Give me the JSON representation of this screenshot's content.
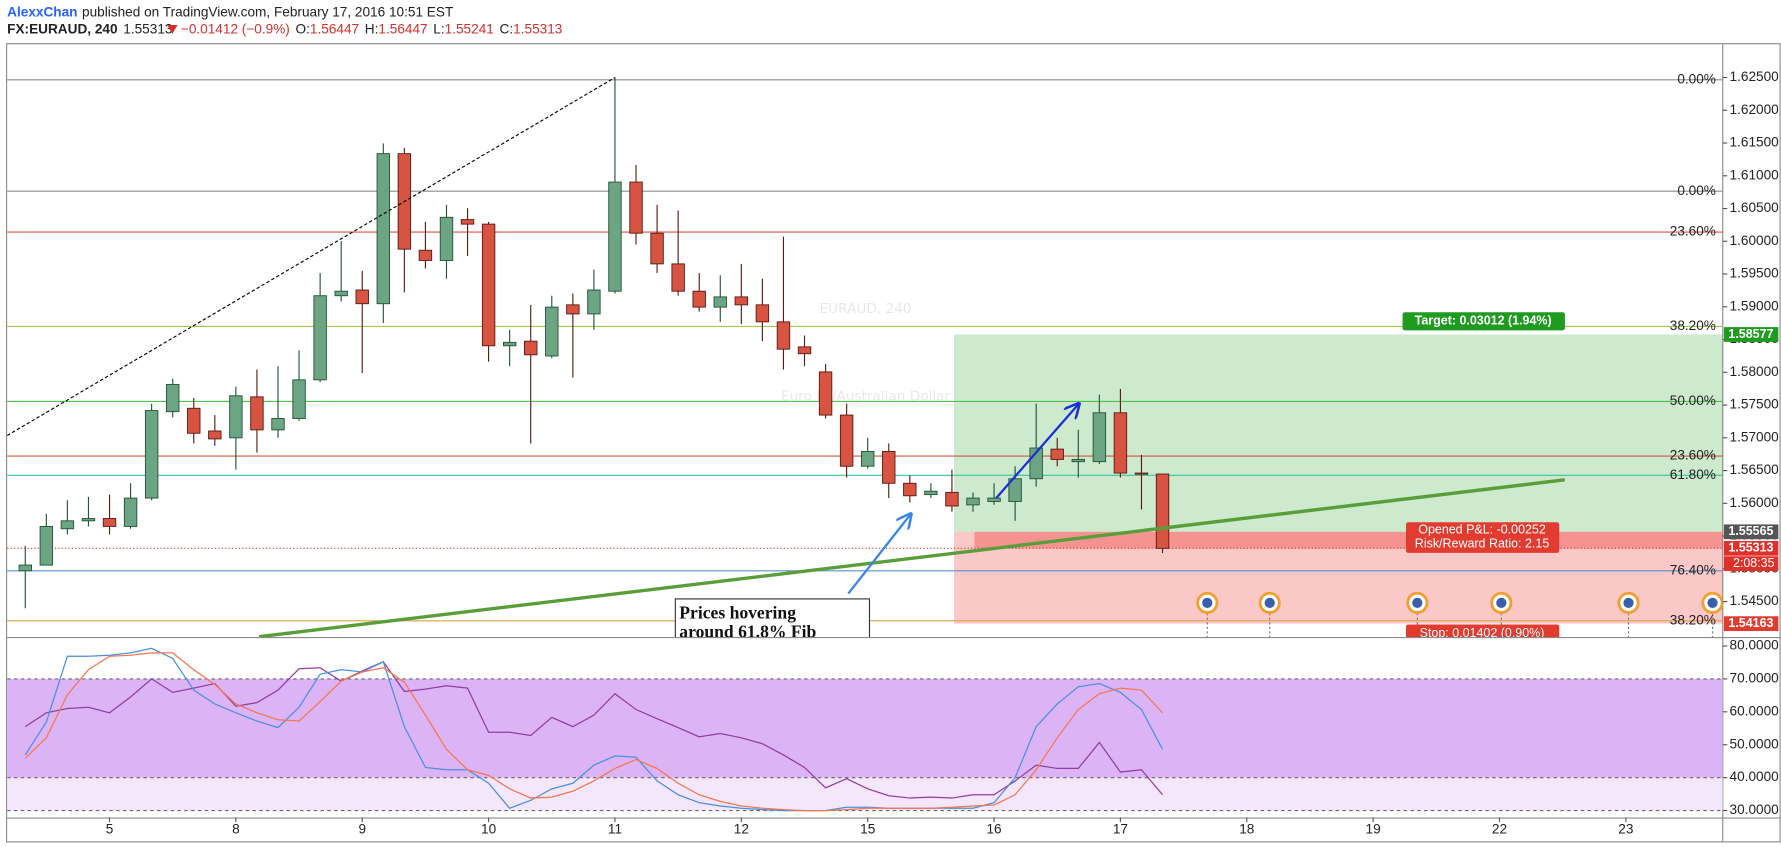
{
  "header": {
    "author": "AlexxChan",
    "published": "published on TradingView.com, February 17, 2016 10:51 EST",
    "symbol": "FX:EURAUD, 240",
    "last": "1.55313",
    "change": "−0.01412 (−0.9%)",
    "ohlc": [
      {
        "label": "O:",
        "value": "1.56447"
      },
      {
        "label": "H:",
        "value": "1.56447"
      },
      {
        "label": "L:",
        "value": "1.55241"
      },
      {
        "label": "C:",
        "value": "1.55313"
      }
    ]
  },
  "chart_data": [
    {
      "type": "candlestick",
      "watermark": [
        "EURAUD, 240",
        "Euro Fx/Australian Dollar"
      ],
      "x": [
        0,
        1,
        2,
        3,
        4,
        5,
        6,
        7,
        8,
        9,
        10,
        11,
        12,
        13,
        14,
        15,
        16,
        17,
        18,
        19,
        20,
        21,
        22,
        23,
        24,
        25,
        26,
        27,
        28,
        29,
        30,
        31,
        32,
        33,
        34,
        35,
        36,
        37,
        38,
        39,
        40,
        41,
        42,
        43,
        44,
        45,
        46,
        47,
        48,
        49,
        50,
        51,
        52,
        53,
        54
      ],
      "open": [
        1.5497,
        1.55057,
        1.55612,
        1.55733,
        1.55768,
        1.55647,
        1.5608,
        1.57399,
        1.57451,
        1.57104,
        1.57,
        1.57625,
        1.57121,
        1.57295,
        1.57885,
        1.59169,
        1.59256,
        1.59047,
        1.61338,
        1.59863,
        1.59707,
        1.60331,
        1.60262,
        1.58405,
        1.58475,
        1.58249,
        1.5903,
        1.58891,
        1.59238,
        1.60904,
        1.60123,
        1.59655,
        1.59238,
        1.58995,
        1.59151,
        1.5903,
        1.5877,
        1.58388,
        1.58006,
        1.57347,
        1.56566,
        1.56792,
        1.56306,
        1.56133,
        1.56167,
        1.55976,
        1.56028,
        1.56028,
        1.56375,
        1.56827,
        1.56636,
        1.56636,
        1.57382,
        1.56462,
        1.56447
      ],
      "high": [
        1.55352,
        1.55838,
        1.56046,
        1.56098,
        1.56133,
        1.56306,
        1.57521,
        1.57902,
        1.57607,
        1.57347,
        1.57781,
        1.58041,
        1.58093,
        1.58336,
        1.59516,
        1.60002,
        1.5955,
        1.61494,
        1.61424,
        1.60297,
        1.60557,
        1.60505,
        1.60297,
        1.58648,
        1.5903,
        1.59169,
        1.59203,
        1.59568,
        1.625,
        1.61164,
        1.60557,
        1.6047,
        1.59516,
        1.59481,
        1.59655,
        1.59429,
        1.60071,
        1.58562,
        1.58128,
        1.57521,
        1.57,
        1.56913,
        1.56427,
        1.56306,
        1.56514,
        1.56167,
        1.56306,
        1.56566,
        1.57521,
        1.57,
        1.57121,
        1.57659,
        1.57746,
        1.5674,
        1.56447
      ],
      "low": [
        1.54398,
        1.55057,
        1.55525,
        1.55647,
        1.55525,
        1.55612,
        1.56046,
        1.57312,
        1.56913,
        1.56879,
        1.56514,
        1.56774,
        1.57,
        1.5726,
        1.5785,
        1.59082,
        1.57989,
        1.58752,
        1.59221,
        1.59585,
        1.59429,
        1.59776,
        1.58162,
        1.58093,
        1.56913,
        1.58215,
        1.5792,
        1.58648,
        1.59203,
        1.5995,
        1.59516,
        1.59169,
        1.58926,
        1.5877,
        1.58735,
        1.58475,
        1.58041,
        1.58093,
        1.57295,
        1.56393,
        1.56532,
        1.5608,
        1.56011,
        1.5608,
        1.55872,
        1.55872,
        1.55976,
        1.55733,
        1.56254,
        1.56566,
        1.56393,
        1.56601,
        1.56393,
        1.55907,
        1.55241
      ],
      "close": [
        1.55057,
        1.55647,
        1.55733,
        1.55768,
        1.55647,
        1.5608,
        1.57416,
        1.57815,
        1.57069,
        1.56983,
        1.57642,
        1.57121,
        1.57295,
        1.57885,
        1.59169,
        1.59238,
        1.59047,
        1.61338,
        1.5988,
        1.59707,
        1.60366,
        1.60262,
        1.58405,
        1.58457,
        1.58267,
        1.58995,
        1.58891,
        1.59256,
        1.60904,
        1.60123,
        1.59655,
        1.59238,
        1.58995,
        1.59151,
        1.5903,
        1.5877,
        1.58353,
        1.58284,
        1.57347,
        1.56566,
        1.56792,
        1.56306,
        1.56115,
        1.56185,
        1.55959,
        1.5608,
        1.5608,
        1.56375,
        1.56844,
        1.5667,
        1.5667,
        1.57382,
        1.56462,
        1.56447,
        1.55313
      ],
      "up_color": "#6ba583",
      "down_color": "#d75442",
      "up_border": "#225437",
      "down_border": "#5b1a13",
      "xlim": [
        -0.86,
        80.6
      ],
      "xticks": [
        {
          "value": 4,
          "label": "5"
        },
        {
          "value": 10,
          "label": "8"
        },
        {
          "value": 16,
          "label": "9"
        },
        {
          "value": 22,
          "label": "10"
        },
        {
          "value": 28,
          "label": "11"
        },
        {
          "value": 34,
          "label": "12"
        },
        {
          "value": 40,
          "label": "15"
        },
        {
          "value": 46,
          "label": "16"
        },
        {
          "value": 52,
          "label": "17"
        },
        {
          "value": 58,
          "label": "18"
        },
        {
          "value": 64,
          "label": "19"
        },
        {
          "value": 70,
          "label": "22"
        },
        {
          "value": 76,
          "label": "23"
        }
      ],
      "ylim": [
        1.5396,
        1.6299
      ],
      "yticks": [
        {
          "value": 1.545,
          "label": "1.54500"
        },
        {
          "value": 1.55,
          "label": "1.55000"
        },
        {
          "value": 1.555,
          "label": "1.55500"
        },
        {
          "value": 1.56,
          "label": "1.56000"
        },
        {
          "value": 1.565,
          "label": "1.56500"
        },
        {
          "value": 1.57,
          "label": "1.57000"
        },
        {
          "value": 1.575,
          "label": "1.57500"
        },
        {
          "value": 1.58,
          "label": "1.58000"
        },
        {
          "value": 1.585,
          "label": "1.58500"
        },
        {
          "value": 1.59,
          "label": "1.59000"
        },
        {
          "value": 1.595,
          "label": "1.59500"
        },
        {
          "value": 1.6,
          "label": "1.60000"
        },
        {
          "value": 1.605,
          "label": "1.60500"
        },
        {
          "value": 1.61,
          "label": "1.61000"
        },
        {
          "value": 1.615,
          "label": "1.61500"
        },
        {
          "value": 1.62,
          "label": "1.62000"
        },
        {
          "value": 1.625,
          "label": "1.62500"
        }
      ],
      "levels": [
        {
          "label": "0.00%",
          "value": 1.62465,
          "color": "#8c8c8c"
        },
        {
          "label": "0.00%",
          "value": 1.60765,
          "color": "#8c8c8c"
        },
        {
          "label": "23.60%",
          "value": 1.6014,
          "color": "#e0504a"
        },
        {
          "label": "38.20%",
          "value": 1.587,
          "color": "#a5c94a"
        },
        {
          "label": "50.00%",
          "value": 1.57555,
          "color": "#4cc24c"
        },
        {
          "label": "23.60%",
          "value": 1.56722,
          "color": "#d0583e"
        },
        {
          "label": "61.80%",
          "value": 1.56427,
          "color": "#3cc4a0"
        },
        {
          "label": "76.40%",
          "value": 1.5497,
          "color": "#5b8fd4"
        },
        {
          "label": "38.20%",
          "value": 1.54207,
          "color": "#d9a24a"
        }
      ],
      "drawings": [
        {
          "style": "dashed",
          "color": "#000000",
          "x": [
            -0.86,
            28
          ],
          "y": [
            1.57035,
            1.625
          ]
        },
        {
          "style": "solid",
          "color": "#5a9e3a",
          "x": [
            11.1,
            73.1
          ],
          "y": [
            1.53964,
            1.56358
          ]
        },
        {
          "style": "arrow",
          "color": "#1a2fd6",
          "x": [
            46.1,
            50.03
          ],
          "y": [
            1.5608,
            1.57521
          ]
        },
        {
          "style": "arrow",
          "color": "#3a86e8",
          "x": [
            39.08,
            42.05
          ],
          "y": [
            1.54623,
            1.55838
          ]
        }
      ],
      "annotation": [
        "Prices hovering",
        "around 61.8% Fib"
      ],
      "position": {
        "start_x": 44.1,
        "target_color": "#4caf50",
        "stop_color": "#ef5350",
        "entry": {
          "value": 1.55565,
          "label": "1.55565"
        },
        "target": {
          "value": 1.58577,
          "label": "1.58577"
        },
        "stop": {
          "value": 1.54163,
          "label": "1.54163"
        },
        "target_text": "Target: 0.03012 (1.94%)",
        "stop_text": "Stop: 0.01402 (0.90%)",
        "pnl_text": [
          "Opened P&L: -0.00252",
          "Risk/Reward Ratio: 2.15"
        ]
      },
      "last_price": {
        "value": 1.55313,
        "label": "1.55313",
        "countdown": "2:08:35",
        "color": "#e0302a"
      }
    },
    {
      "type": "line",
      "ylim": [
        27.9,
        82.4
      ],
      "yticks": [
        {
          "value": 30,
          "label": "30.0000"
        },
        {
          "value": 40,
          "label": "40.0000"
        },
        {
          "value": 50,
          "label": "50.0000"
        },
        {
          "value": 60,
          "label": "60.0000"
        },
        {
          "value": 70,
          "label": "70.0000"
        },
        {
          "value": 80,
          "label": "80.0000"
        }
      ],
      "bands": [
        {
          "from": 40,
          "to": 70,
          "color": "#dcb4f5"
        },
        {
          "from": 30,
          "to": 40,
          "color": "#f4e6fb"
        }
      ],
      "hlines": [
        70,
        40,
        30
      ],
      "series": [
        {
          "color": "#8e3fa0",
          "values": [
            55.5,
            59.7,
            61.0,
            61.4,
            59.7,
            64.5,
            70.0,
            65.9,
            67.2,
            68.6,
            61.7,
            62.8,
            66.6,
            73.1,
            73.4,
            69.3,
            72.4,
            75.2,
            66.2,
            66.9,
            67.9,
            67.2,
            53.8,
            53.8,
            52.8,
            58.3,
            55.5,
            59.0,
            65.5,
            60.7,
            57.9,
            55.2,
            52.4,
            53.4,
            52.1,
            50.3,
            46.9,
            43.1,
            36.9,
            39.7,
            36.6,
            34.5,
            33.8,
            34.1,
            33.8,
            34.8,
            34.8,
            39.0,
            43.8,
            42.8,
            42.8,
            50.7,
            41.7,
            42.4,
            34.8
          ]
        },
        {
          "color": "#4a8fe6",
          "values": [
            46.9,
            56.9,
            76.9,
            76.9,
            77.2,
            77.9,
            79.3,
            76.2,
            66.6,
            62.4,
            59.7,
            57.2,
            55.2,
            61.4,
            71.4,
            72.8,
            72.1,
            75.2,
            55.5,
            43.1,
            42.4,
            42.4,
            38.3,
            30.7,
            33.1,
            36.6,
            38.3,
            43.8,
            46.6,
            46.2,
            39.0,
            34.8,
            32.4,
            31.4,
            30.7,
            30.3,
            30.0,
            30.0,
            30.0,
            31.0,
            31.0,
            30.7,
            30.7,
            30.7,
            30.7,
            30.7,
            32.4,
            40.0,
            55.5,
            62.4,
            67.6,
            68.6,
            65.9,
            60.7,
            48.6
          ]
        },
        {
          "color": "#f5774f",
          "values": [
            45.9,
            52.1,
            65.2,
            72.8,
            76.9,
            77.2,
            77.9,
            77.9,
            72.8,
            68.3,
            62.4,
            59.7,
            57.6,
            57.2,
            63.1,
            69.3,
            72.1,
            73.4,
            69.0,
            59.0,
            48.6,
            42.4,
            40.7,
            36.6,
            33.8,
            34.1,
            35.9,
            39.0,
            42.8,
            45.5,
            42.8,
            38.3,
            34.8,
            32.8,
            31.4,
            30.7,
            30.3,
            30.0,
            30.0,
            30.3,
            30.7,
            30.7,
            30.7,
            30.7,
            31.0,
            31.4,
            31.7,
            34.8,
            42.4,
            52.1,
            60.7,
            65.5,
            67.2,
            66.6,
            59.7
          ]
        }
      ]
    }
  ]
}
